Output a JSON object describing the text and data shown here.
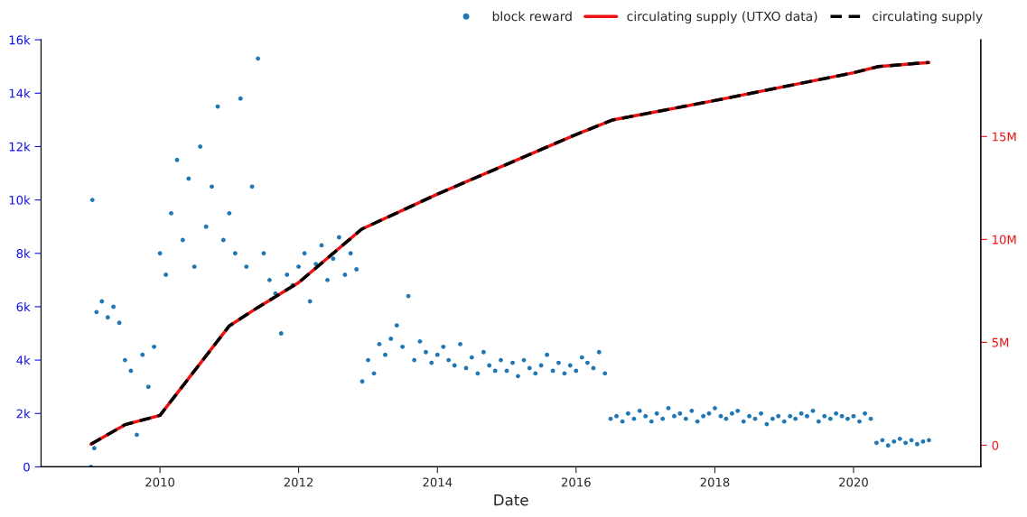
{
  "chart_data": {
    "type": "scatter",
    "xlabel": "Date",
    "legend": "top right",
    "grid": false,
    "xlim": [
      "2008-04-15",
      "2021-11-01"
    ],
    "xticks": [
      {
        "value": "2010-01-01",
        "label": "2010"
      },
      {
        "value": "2012-01-01",
        "label": "2012"
      },
      {
        "value": "2014-01-01",
        "label": "2014"
      },
      {
        "value": "2016-01-01",
        "label": "2016"
      },
      {
        "value": "2018-01-01",
        "label": "2018"
      },
      {
        "value": "2020-01-01",
        "label": "2020"
      }
    ],
    "ylim": [
      0,
      16000
    ],
    "yticks": [
      {
        "value": 0,
        "label": "0"
      },
      {
        "value": 2000,
        "label": "2k"
      },
      {
        "value": 4000,
        "label": "4k"
      },
      {
        "value": 6000,
        "label": "6k"
      },
      {
        "value": 8000,
        "label": "8k"
      },
      {
        "value": 10000,
        "label": "10k"
      },
      {
        "value": 12000,
        "label": "12k"
      },
      {
        "value": 14000,
        "label": "14k"
      },
      {
        "value": 16000,
        "label": "16k"
      }
    ],
    "y2lim": [
      -1050000,
      19700000
    ],
    "y2ticks": [
      {
        "value": 0,
        "label": "0"
      },
      {
        "value": 5000000,
        "label": "5M"
      },
      {
        "value": 10000000,
        "label": "10M"
      },
      {
        "value": 15000000,
        "label": "15M"
      }
    ],
    "series": [
      {
        "name": "block reward",
        "marker": "circle",
        "color": "#1f77b4",
        "x": [
          "2009-01-03",
          "2009-01-10",
          "2009-01-20",
          "2009-02",
          "2009-03",
          "2009-04",
          "2009-05",
          "2009-06",
          "2009-07",
          "2009-08",
          "2009-09",
          "2009-10",
          "2009-11",
          "2009-12",
          "2010-01",
          "2010-02",
          "2010-03",
          "2010-04",
          "2010-05",
          "2010-06",
          "2010-07",
          "2010-08",
          "2010-09",
          "2010-10",
          "2010-11",
          "2010-12",
          "2011-01",
          "2011-02",
          "2011-03",
          "2011-04",
          "2011-05",
          "2011-06",
          "2011-07",
          "2011-08",
          "2011-09",
          "2011-10",
          "2011-11",
          "2011-12",
          "2012-01",
          "2012-02",
          "2012-03",
          "2012-04",
          "2012-05",
          "2012-06",
          "2012-07",
          "2012-08",
          "2012-09",
          "2012-10",
          "2012-11",
          "2012-12",
          "2013-01",
          "2013-02",
          "2013-03",
          "2013-04",
          "2013-05",
          "2013-06",
          "2013-07",
          "2013-08",
          "2013-09",
          "2013-10",
          "2013-11",
          "2013-12",
          "2014-01",
          "2014-02",
          "2014-03",
          "2014-04",
          "2014-05",
          "2014-06",
          "2014-07",
          "2014-08",
          "2014-09",
          "2014-10",
          "2014-11",
          "2014-12",
          "2015-01",
          "2015-02",
          "2015-03",
          "2015-04",
          "2015-05",
          "2015-06",
          "2015-07",
          "2015-08",
          "2015-09",
          "2015-10",
          "2015-11",
          "2015-12",
          "2016-01",
          "2016-02",
          "2016-03",
          "2016-04",
          "2016-05",
          "2016-06",
          "2016-07",
          "2016-08",
          "2016-09",
          "2016-10",
          "2016-11",
          "2016-12",
          "2017-01",
          "2017-02",
          "2017-03",
          "2017-04",
          "2017-05",
          "2017-06",
          "2017-07",
          "2017-08",
          "2017-09",
          "2017-10",
          "2017-11",
          "2017-12",
          "2018-01",
          "2018-02",
          "2018-03",
          "2018-04",
          "2018-05",
          "2018-06",
          "2018-07",
          "2018-08",
          "2018-09",
          "2018-10",
          "2018-11",
          "2018-12",
          "2019-01",
          "2019-02",
          "2019-03",
          "2019-04",
          "2019-05",
          "2019-06",
          "2019-07",
          "2019-08",
          "2019-09",
          "2019-10",
          "2019-11",
          "2019-12",
          "2020-01",
          "2020-02",
          "2020-03",
          "2020-04",
          "2020-05",
          "2020-06",
          "2020-07",
          "2020-08",
          "2020-09",
          "2020-10",
          "2020-11",
          "2020-12",
          "2021-01",
          "2021-02"
        ],
        "values": [
          0,
          10000,
          700,
          5800,
          6200,
          5600,
          6000,
          5400,
          4000,
          3600,
          1200,
          4200,
          3000,
          4500,
          8000,
          7200,
          9500,
          11500,
          8500,
          10800,
          7500,
          12000,
          9000,
          10500,
          13500,
          8500,
          9500,
          8000,
          13800,
          7500,
          10500,
          15300,
          8000,
          7000,
          6500,
          5000,
          7200,
          6800,
          7500,
          8000,
          6200,
          7600,
          8300,
          7000,
          7800,
          8600,
          7200,
          8000,
          7400,
          3200,
          4000,
          3500,
          4600,
          4200,
          4800,
          5300,
          4500,
          6400,
          4000,
          4700,
          4300,
          3900,
          4200,
          4500,
          4000,
          3800,
          4600,
          3700,
          4100,
          3500,
          4300,
          3800,
          3600,
          4000,
          3600,
          3900,
          3400,
          4000,
          3700,
          3500,
          3800,
          4200,
          3600,
          3900,
          3500,
          3800,
          3600,
          4100,
          3900,
          3700,
          4300,
          3500,
          1800,
          1900,
          1700,
          2000,
          1800,
          2100,
          1900,
          1700,
          2000,
          1800,
          2200,
          1900,
          2000,
          1800,
          2100,
          1700,
          1900,
          2000,
          2200,
          1900,
          1800,
          2000,
          2100,
          1700,
          1900,
          1800,
          2000,
          1600,
          1800,
          1900,
          1700,
          1900,
          1800,
          2000,
          1900,
          2100,
          1700,
          1900,
          1800,
          2000,
          1900,
          1800,
          1900,
          1700,
          2000,
          1800,
          900,
          1000,
          800,
          950,
          1050,
          900,
          1000,
          850,
          950,
          1000
        ]
      },
      {
        "name": "circulating supply (UTXO data)",
        "type": "line",
        "axis": "y2",
        "line_style": "solid",
        "marker": "none",
        "color": "#ee1111",
        "x": [
          "2009-01-03",
          "2009-07-01",
          "2010-01-01",
          "2011-01-01",
          "2011-06-01",
          "2012-01-01",
          "2012-11-28",
          "2014-01-01",
          "2016-01-01",
          "2016-07-09",
          "2018-01-01",
          "2020-01-01",
          "2020-05-11",
          "2021-02-01"
        ],
        "values": [
          50000,
          1000000,
          1450000,
          5800000,
          6700000,
          7900000,
          10500000,
          12200000,
          15100000,
          15800000,
          16750000,
          18100000,
          18400000,
          18600000
        ]
      },
      {
        "name": "circulating supply",
        "type": "line",
        "axis": "y2",
        "line_style": "dashed",
        "marker": "none",
        "color": "#000000",
        "x": [
          "2009-01-03",
          "2009-07-01",
          "2010-01-01",
          "2011-01-01",
          "2011-06-01",
          "2012-01-01",
          "2012-11-28",
          "2014-01-01",
          "2016-01-01",
          "2016-07-09",
          "2018-01-01",
          "2020-01-01",
          "2020-05-11",
          "2021-02-01"
        ],
        "values": [
          50000,
          1000000,
          1450000,
          5800000,
          6700000,
          7900000,
          10500000,
          12200000,
          15100000,
          15800000,
          16750000,
          18100000,
          18400000,
          18600000
        ]
      }
    ]
  }
}
